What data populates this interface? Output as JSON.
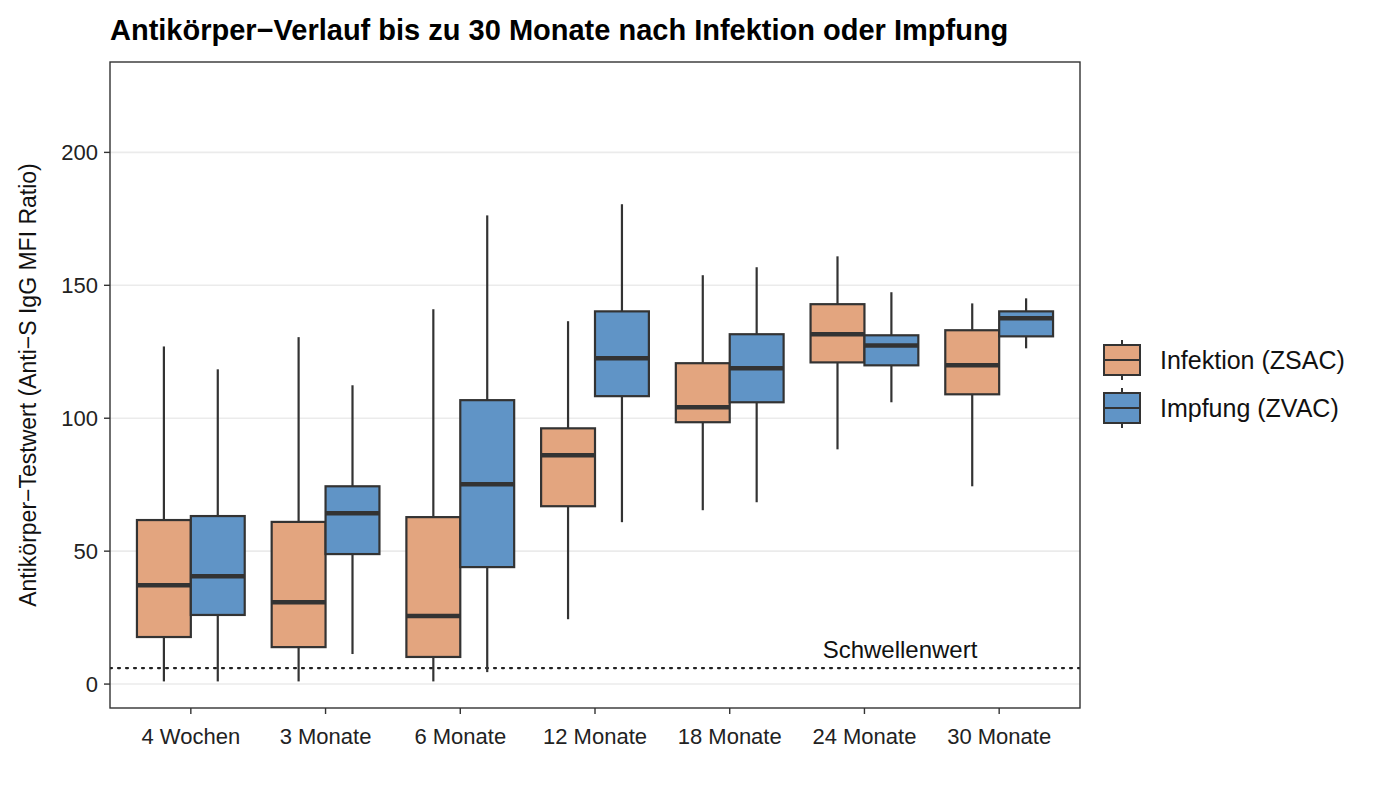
{
  "chart_data": {
    "type": "box",
    "title": "Antikörper−Verlauf bis zu 30 Monate nach Infektion oder Impfung",
    "y_label": "Antikörper−Testwert (Anti−S IgG MFI Ratio)",
    "categories": [
      "4 Wochen",
      "3 Monate",
      "6 Monate",
      "12 Monate",
      "18 Monate",
      "24 Monate",
      "30 Monate"
    ],
    "series": [
      {
        "name": "Infektion (ZSAC)",
        "color": "#e3a57f",
        "min": [
          1,
          1,
          1,
          24.4,
          65.4,
          88.3,
          74.4
        ],
        "q1": [
          17.7,
          13.9,
          10.2,
          66.9,
          98.5,
          121,
          109
        ],
        "median": [
          37.2,
          30.8,
          25.6,
          86.1,
          104.1,
          131.6,
          119.9
        ],
        "q3": [
          61.7,
          61,
          62.8,
          96.2,
          120.7,
          142.9,
          133.1
        ],
        "max": [
          127,
          130.5,
          141,
          136.5,
          153.8,
          160.9,
          143.2
        ]
      },
      {
        "name": "Impfung (ZVAC)",
        "color": "#6094c6",
        "min": [
          1,
          11.3,
          4.5,
          60.9,
          68.4,
          106,
          126.3
        ],
        "q1": [
          26,
          48.9,
          44,
          108.3,
          106,
          119.9,
          130.8
        ],
        "median": [
          40.6,
          64.3,
          75.2,
          122.6,
          118.8,
          127.4,
          137.6
        ],
        "q3": [
          63.2,
          74.4,
          106.8,
          140.2,
          131.6,
          131.2,
          140.2
        ],
        "max": [
          118.4,
          112.4,
          176.3,
          180.5,
          156.8,
          147.4,
          145.1
        ]
      }
    ],
    "threshold": {
      "label": "Schwellenwert",
      "value": 6
    },
    "ylim": [
      -9,
      234
    ],
    "yticks": [
      0,
      50,
      100,
      150,
      200
    ],
    "grid": true,
    "legend": "right"
  }
}
